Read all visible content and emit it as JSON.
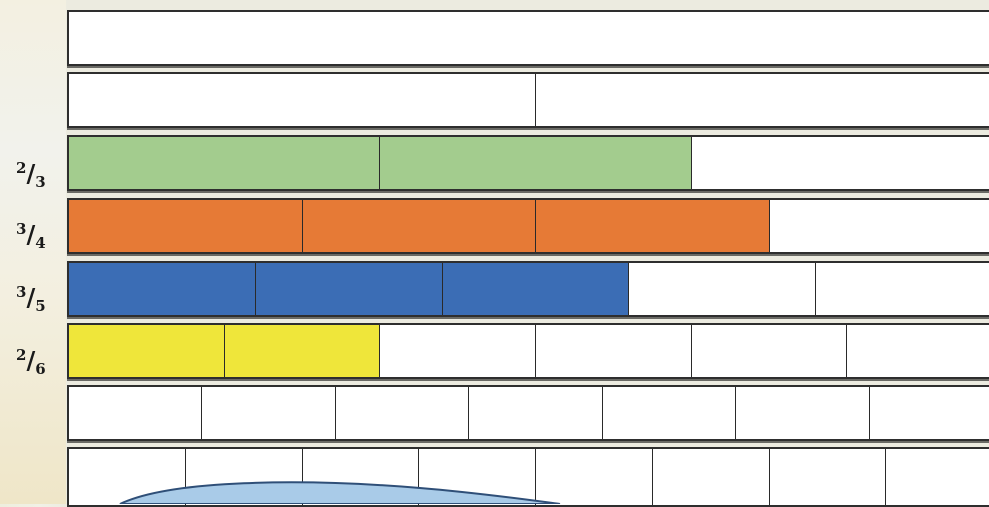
{
  "strip_width_units": 1,
  "strips": [
    {
      "name": "whole",
      "parts": 1,
      "filled": 0,
      "label": null,
      "color": null
    },
    {
      "name": "halves",
      "parts": 2,
      "filled": 0,
      "label": null,
      "color": null
    },
    {
      "name": "thirds",
      "parts": 3,
      "filled": 2,
      "label": {
        "numerator": "2",
        "denominator": "3"
      },
      "color": "#a3cc8e"
    },
    {
      "name": "quarters",
      "parts": 4,
      "filled": 3,
      "label": {
        "numerator": "3",
        "denominator": "4"
      },
      "color": "#e67a36"
    },
    {
      "name": "fifths",
      "parts": 5,
      "filled": 3,
      "label": {
        "numerator": "3",
        "denominator": "5"
      },
      "color": "#3b6db5"
    },
    {
      "name": "sixths",
      "parts": 6,
      "filled": 2,
      "label": {
        "numerator": "2",
        "denominator": "6"
      },
      "color": "#efe63a"
    },
    {
      "name": "sevenths",
      "parts": 7,
      "filled": 0,
      "label": null,
      "color": null
    },
    {
      "name": "eighths",
      "parts": 8,
      "filled": 0,
      "label": null,
      "color": null
    }
  ],
  "colors": {
    "green": "#a3cc8e",
    "orange": "#e67a36",
    "blue": "#3b6db5",
    "yellow": "#efe63a",
    "blob": "#a9cbe8"
  }
}
